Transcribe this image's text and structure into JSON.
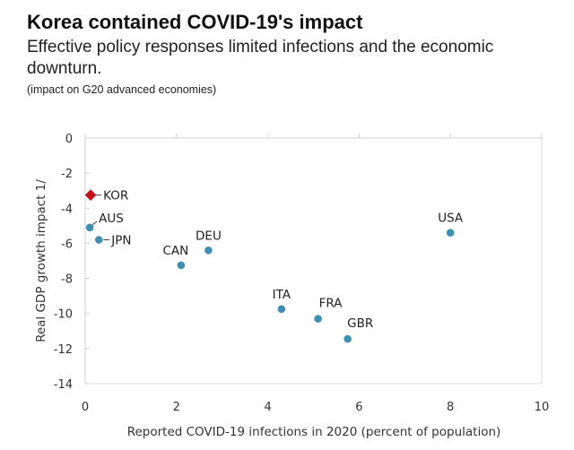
{
  "chart_data": {
    "type": "scatter",
    "title": "Korea contained COVID-19's impact",
    "subtitle_lines": [
      "Effective policy responses limited infections and the economic",
      "downturn."
    ],
    "note": "(impact on G20 advanced economies)",
    "xlabel": "Reported COVID-19 infections in 2020 (percent of population)",
    "ylabel": "Real GDP growth impact 1/",
    "xlim": [
      0,
      10
    ],
    "ylim": [
      -14,
      0
    ],
    "xticks": [
      "0",
      "2",
      "4",
      "6",
      "8",
      "10"
    ],
    "yticks": [
      "0",
      "-2",
      "-4",
      "-6",
      "-8",
      "-10",
      "-12",
      "-14"
    ],
    "grid": false,
    "colors": {
      "highlight": "#c0141c",
      "default": "#3f8fb0"
    },
    "points": [
      {
        "label": "KOR",
        "x": 0.12,
        "y": -3.25,
        "highlight": true,
        "label_position": "right"
      },
      {
        "label": "AUS",
        "x": 0.1,
        "y": -5.1,
        "highlight": false,
        "label_position": "upper-right"
      },
      {
        "label": "JPN",
        "x": 0.3,
        "y": -5.8,
        "highlight": false,
        "label_position": "right"
      },
      {
        "label": "CAN",
        "x": 2.1,
        "y": -7.25,
        "highlight": false,
        "label_position": "above"
      },
      {
        "label": "DEU",
        "x": 2.7,
        "y": -6.4,
        "highlight": false,
        "label_position": "above"
      },
      {
        "label": "ITA",
        "x": 4.3,
        "y": -9.75,
        "highlight": false,
        "label_position": "above"
      },
      {
        "label": "FRA",
        "x": 5.1,
        "y": -10.3,
        "highlight": false,
        "label_position": "above-right"
      },
      {
        "label": "GBR",
        "x": 5.75,
        "y": -11.45,
        "highlight": false,
        "label_position": "above-right"
      },
      {
        "label": "USA",
        "x": 8.0,
        "y": -5.4,
        "highlight": false,
        "label_position": "above"
      }
    ]
  }
}
